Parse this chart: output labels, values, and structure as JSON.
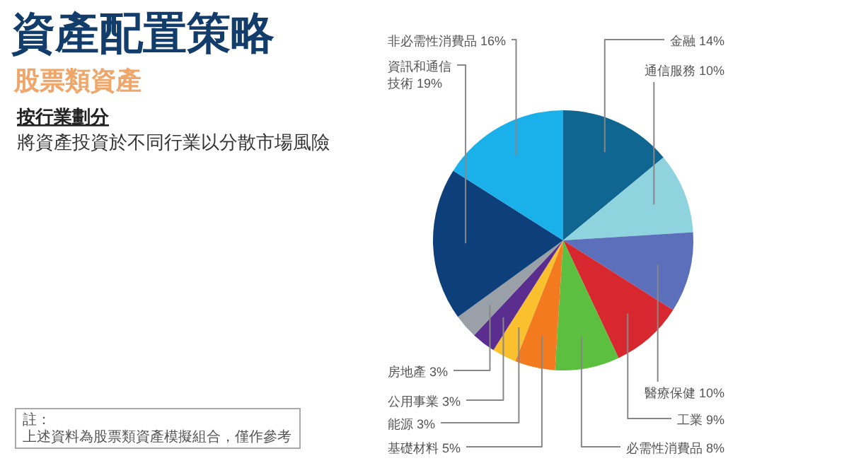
{
  "chart_data": {
    "type": "pie",
    "title": "資產配置策略",
    "subtitle": "股票類資產",
    "annotations": [
      "按行業劃分",
      "將資產投資於不同行業以分散市場風險",
      "註：",
      "上述資料為股票類資產模擬組合，僅作參考"
    ],
    "categories": [
      "金融",
      "通信服務",
      "醫療保健",
      "工業",
      "必需性消費品",
      "基礎材料",
      "能源",
      "公用事業",
      "房地產",
      "資訊和通信技術",
      "非必需性消費品"
    ],
    "values": [
      14,
      10,
      10,
      9,
      8,
      5,
      3,
      3,
      3,
      19,
      16
    ],
    "value_labels": [
      "14%",
      "10%",
      "10%",
      "9%",
      "8%",
      "5%",
      "3%",
      "3%",
      "3%",
      "19%",
      "16%"
    ],
    "colors": [
      "#0f6690",
      "#8fd3df",
      "#5b6fba",
      "#d7282f",
      "#5cbf3f",
      "#f47a20",
      "#fbc02d",
      "#5a2d8f",
      "#9aa0a8",
      "#0d3f7a",
      "#1ab0ea"
    ]
  }
}
